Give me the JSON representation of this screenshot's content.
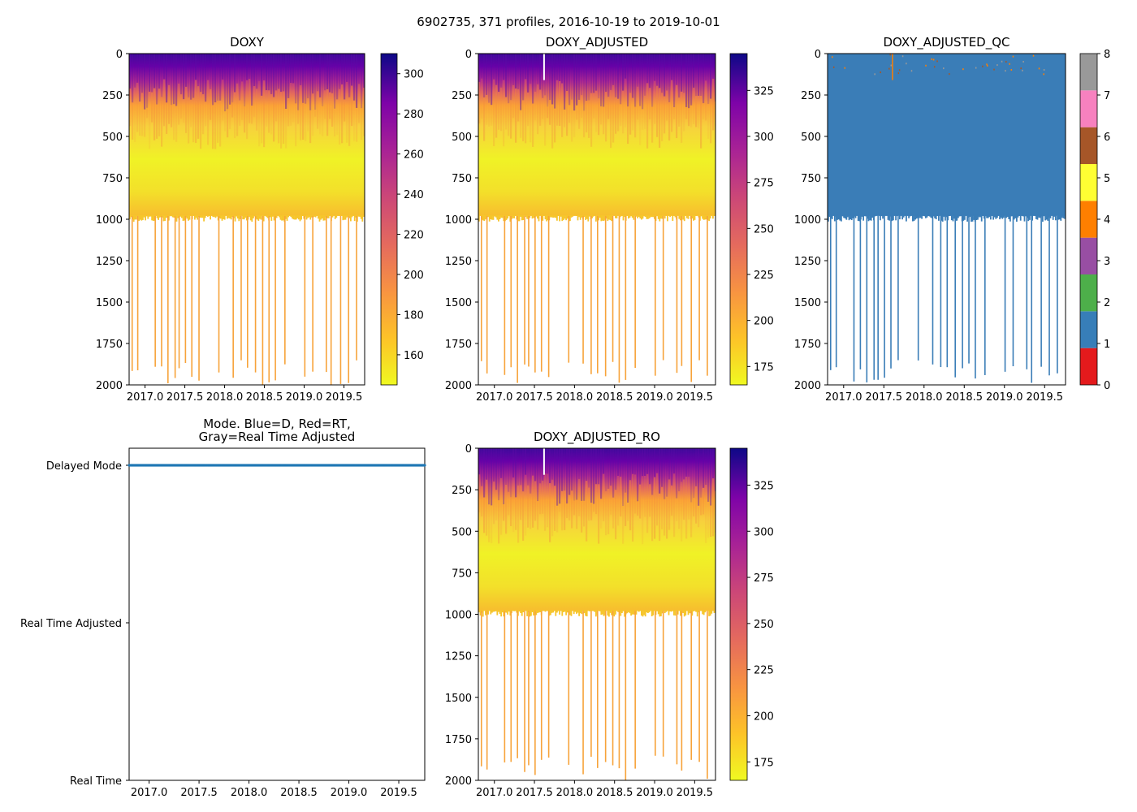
{
  "suptitle": "6902735, 371 profiles, 2016-10-19 to 2019-10-01",
  "chart_data": [
    {
      "type": "heatmap",
      "id": "doxy",
      "title": "DOXY",
      "colormap": "plasma_r",
      "ylim": [
        0,
        2000
      ],
      "xlim": [
        2016.8,
        2019.76
      ],
      "yticks": [
        0,
        250,
        500,
        750,
        1000,
        1250,
        1500,
        1750,
        2000
      ],
      "xtick_labels": [
        "2017.0",
        "2017.5",
        "2018.0",
        "2018.5",
        "2019.0",
        "2019.5"
      ],
      "colorbar": {
        "min": 145,
        "max": 310,
        "ticks": [
          160,
          180,
          200,
          220,
          240,
          260,
          280,
          300
        ]
      }
    },
    {
      "type": "heatmap",
      "id": "doxy_adjusted",
      "title": "DOXY_ADJUSTED",
      "colormap": "plasma_r",
      "ylim": [
        0,
        2000
      ],
      "xlim": [
        2016.8,
        2019.76
      ],
      "yticks": [
        0,
        250,
        500,
        750,
        1000,
        1250,
        1500,
        1750,
        2000
      ],
      "xtick_labels": [
        "2017.0",
        "2017.5",
        "2018.0",
        "2018.5",
        "2019.0",
        "2019.5"
      ],
      "colorbar": {
        "min": 165,
        "max": 345,
        "ticks": [
          175,
          200,
          225,
          250,
          275,
          300,
          325
        ]
      }
    },
    {
      "type": "heatmap",
      "id": "doxy_adjusted_qc",
      "title": "DOXY_ADJUSTED_QC",
      "colormap": "qc_categorical",
      "ylim": [
        0,
        2000
      ],
      "xlim": [
        2016.8,
        2019.76
      ],
      "yticks": [
        0,
        250,
        500,
        750,
        1000,
        1250,
        1500,
        1750,
        2000
      ],
      "xtick_labels": [
        "2017.0",
        "2017.5",
        "2018.0",
        "2018.5",
        "2019.0",
        "2019.5"
      ],
      "dominant_flag": 1,
      "colorbar": {
        "min": 0,
        "max": 8,
        "ticks": [
          0,
          1,
          2,
          3,
          4,
          5,
          6,
          7,
          8
        ],
        "categories": [
          {
            "flag": 0,
            "color": "#e41a1c"
          },
          {
            "flag": 1,
            "color": "#377eb8"
          },
          {
            "flag": 2,
            "color": "#4daf4a"
          },
          {
            "flag": 3,
            "color": "#984ea3"
          },
          {
            "flag": 4,
            "color": "#ff7f00"
          },
          {
            "flag": 5,
            "color": "#ffff33"
          },
          {
            "flag": 6,
            "color": "#a65628"
          },
          {
            "flag": 7,
            "color": "#f781bf"
          },
          {
            "flag": 8,
            "color": "#999999"
          }
        ]
      }
    },
    {
      "type": "scatter",
      "id": "mode",
      "title_line1": "Mode. Blue=D, Red=RT,",
      "title_line2": "Gray=Real Time Adjusted",
      "xlim": [
        2016.8,
        2019.76
      ],
      "xtick_labels": [
        "2017.0",
        "2017.5",
        "2018.0",
        "2018.5",
        "2019.0",
        "2019.5"
      ],
      "ycategories": [
        "Real Time",
        "Real Time Adjusted",
        "Delayed Mode"
      ],
      "series": [
        {
          "name": "Delayed Mode",
          "color": "#1f77b4",
          "y": "Delayed Mode",
          "x_range": [
            2016.8,
            2019.76
          ],
          "count": 371
        }
      ]
    },
    {
      "type": "heatmap",
      "id": "doxy_adjusted_ro",
      "title": "DOXY_ADJUSTED_RO",
      "colormap": "plasma_r",
      "ylim": [
        0,
        2000
      ],
      "xlim": [
        2016.8,
        2019.76
      ],
      "yticks": [
        0,
        250,
        500,
        750,
        1000,
        1250,
        1500,
        1750,
        2000
      ],
      "xtick_labels": [
        "2017.0",
        "2017.5",
        "2018.0",
        "2018.5",
        "2019.0",
        "2019.5"
      ],
      "colorbar": {
        "min": 165,
        "max": 345,
        "ticks": [
          175,
          200,
          225,
          250,
          275,
          300,
          325
        ]
      }
    }
  ],
  "colors": {
    "qc_blue": "#3a7db7",
    "deep_orange": "#f7a33a",
    "axes": "#000000"
  }
}
